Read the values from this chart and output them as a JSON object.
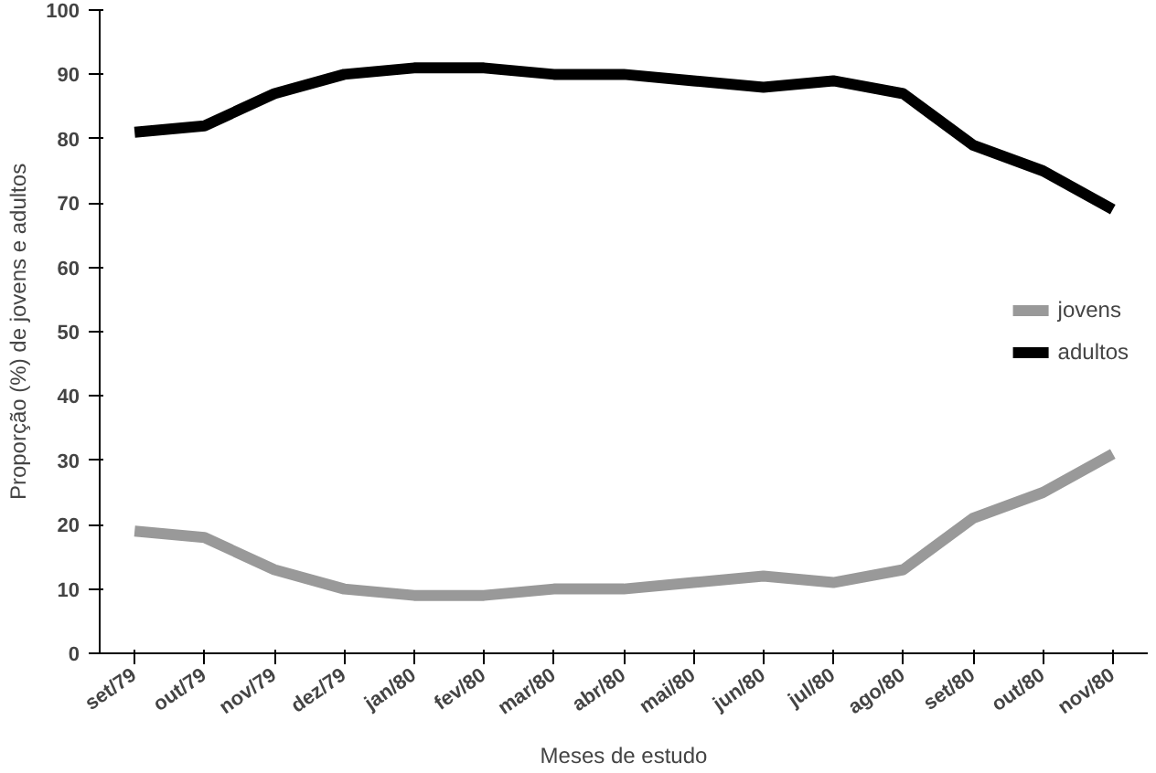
{
  "chart_data": {
    "type": "line",
    "xlabel": "Meses de estudo",
    "ylabel": "Proporção (%) de jovens e adultos",
    "categories": [
      "set/79",
      "out/79",
      "nov/79",
      "dez/79",
      "jan/80",
      "fev/80",
      "mar/80",
      "abr/80",
      "mai/80",
      "jun/80",
      "jul/80",
      "ago/80",
      "set/80",
      "out/80",
      "nov/80"
    ],
    "series": [
      {
        "name": "jovens",
        "color": "#999999",
        "values": [
          19,
          18,
          13,
          10,
          9,
          9,
          10,
          10,
          11,
          12,
          11,
          13,
          21,
          25,
          31
        ]
      },
      {
        "name": "adultos",
        "color": "#000000",
        "values": [
          81,
          82,
          87,
          90,
          91,
          91,
          90,
          90,
          89,
          88,
          89,
          87,
          79,
          75,
          69
        ]
      }
    ],
    "ylim": [
      0,
      100
    ],
    "yticks": [
      0,
      10,
      20,
      30,
      40,
      50,
      60,
      70,
      80,
      90,
      100
    ],
    "grid": false,
    "legend": "right",
    "marker": "none",
    "line_style": "solid"
  }
}
